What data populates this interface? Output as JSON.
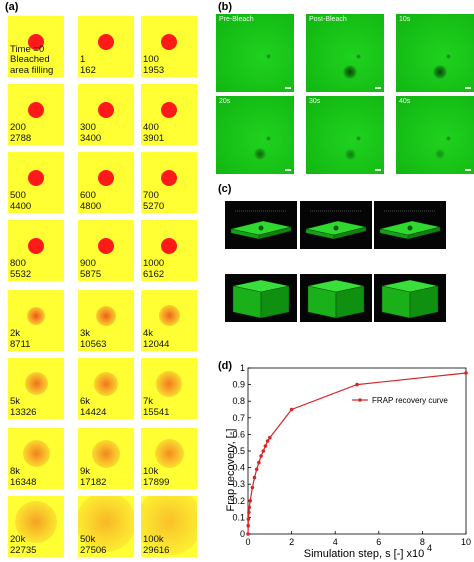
{
  "panels": {
    "a": "(a)",
    "b": "(b)",
    "c": "(c)",
    "d": "(d)"
  },
  "grid_a": {
    "cells": [
      {
        "text": "Time =0\nBleached\narea filling",
        "spot_size": 0.26,
        "blur": 0.0
      },
      {
        "text": "1\n162",
        "spot_size": 0.26,
        "blur": 0.0
      },
      {
        "text": "100\n1953",
        "spot_size": 0.26,
        "blur": 0.02
      },
      {
        "text": "200\n2788",
        "spot_size": 0.26,
        "blur": 0.03
      },
      {
        "text": "300\n3400",
        "spot_size": 0.26,
        "blur": 0.04
      },
      {
        "text": "400\n3901",
        "spot_size": 0.26,
        "blur": 0.05
      },
      {
        "text": "500\n4400",
        "spot_size": 0.26,
        "blur": 0.06
      },
      {
        "text": "600\n4800",
        "spot_size": 0.26,
        "blur": 0.07
      },
      {
        "text": "700\n5270",
        "spot_size": 0.26,
        "blur": 0.08
      },
      {
        "text": "800\n5532",
        "spot_size": 0.26,
        "blur": 0.09
      },
      {
        "text": "900\n5875",
        "spot_size": 0.26,
        "blur": 0.1
      },
      {
        "text": "1000\n6162",
        "spot_size": 0.26,
        "blur": 0.11
      },
      {
        "text": "2k\n8711",
        "spot_size": 0.3,
        "blur": 0.2
      },
      {
        "text": "3k\n10563",
        "spot_size": 0.32,
        "blur": 0.26
      },
      {
        "text": "4k\n12044",
        "spot_size": 0.34,
        "blur": 0.3
      },
      {
        "text": "5k\n13326",
        "spot_size": 0.38,
        "blur": 0.38
      },
      {
        "text": "6k\n14424",
        "spot_size": 0.4,
        "blur": 0.42
      },
      {
        "text": "7k\n15541",
        "spot_size": 0.42,
        "blur": 0.46
      },
      {
        "text": "8k\n16348",
        "spot_size": 0.44,
        "blur": 0.5
      },
      {
        "text": "9k\n17182",
        "spot_size": 0.46,
        "blur": 0.54
      },
      {
        "text": "10k\n17899",
        "spot_size": 0.48,
        "blur": 0.58
      },
      {
        "text": "20k\n22735",
        "spot_size": 0.62,
        "blur": 0.75
      },
      {
        "text": "50k\n27506",
        "spot_size": 0.9,
        "blur": 0.9
      },
      {
        "text": "100k\n29616",
        "spot_size": 1.0,
        "blur": 0.97
      }
    ]
  },
  "microscopy": {
    "tiles": [
      {
        "label": "Pre-Bleach",
        "spots": []
      },
      {
        "label": "Post-Bleach",
        "spots": [
          "main"
        ]
      },
      {
        "label": "10s",
        "spots": [
          "main"
        ]
      },
      {
        "label": "20s",
        "spots": [
          "main-faint"
        ]
      },
      {
        "label": "30s",
        "spots": [
          "main-fainter"
        ]
      },
      {
        "label": "40s",
        "spots": [
          "main-faintest"
        ]
      }
    ]
  },
  "render3d": {
    "boxes": [
      "tile-flat-1",
      "tile-flat-2",
      "tile-flat-3",
      "box-tall-1",
      "box-tall-2",
      "box-tall-3"
    ]
  },
  "chart_data": {
    "type": "line",
    "x": [
      0,
      0.01,
      0.02,
      0.04,
      0.06,
      0.1,
      0.2,
      0.3,
      0.4,
      0.5,
      0.6,
      0.7,
      0.8,
      0.9,
      1.0,
      2.0,
      5.0,
      10.0
    ],
    "series": [
      {
        "name": "FRAP recovery curve",
        "values": [
          0.0,
          0.05,
          0.09,
          0.13,
          0.16,
          0.2,
          0.28,
          0.34,
          0.39,
          0.43,
          0.47,
          0.5,
          0.53,
          0.56,
          0.58,
          0.75,
          0.9,
          0.97
        ],
        "color": "#d62728"
      }
    ],
    "xlabel": "Simulation step, s [-] x10",
    "xlabel_exp": "4",
    "ylabel": "Frap recovery, [-]",
    "xlim": [
      0,
      10
    ],
    "ylim": [
      0,
      1
    ],
    "xticks": [
      "0",
      "2",
      "4",
      "6",
      "8",
      "10"
    ],
    "yticks": [
      "0",
      "0.1",
      "0.2",
      "0.3",
      "0.4",
      "0.5",
      "0.6",
      "0.7",
      "0.8",
      "0.9",
      "1"
    ],
    "legend_position": "top-right"
  }
}
